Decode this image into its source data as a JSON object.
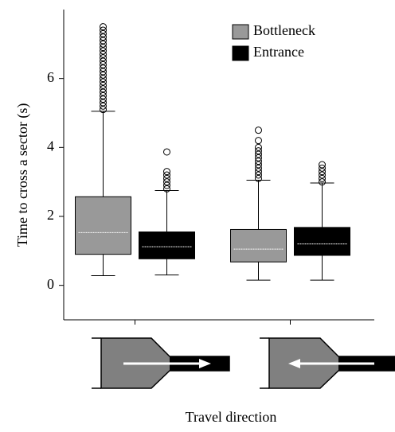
{
  "chart_data": {
    "type": "box",
    "xlabel": "Travel direction",
    "ylabel": "Time to cross a sector (s)",
    "categories": [
      null,
      null
    ],
    "ylim": [
      -1,
      8
    ],
    "yticks": [
      0,
      2,
      4,
      6
    ],
    "legend": "top-right",
    "series": [
      {
        "name": "Bottleneck",
        "color": "#999999",
        "median_color": "#ffffff",
        "boxes": [
          {
            "low": 0.28,
            "q1": 0.9,
            "median": 1.53,
            "q3": 2.57,
            "high": 5.05,
            "outliers": [
              5.1,
              5.2,
              5.3,
              5.4,
              5.5,
              5.6,
              5.7,
              5.8,
              5.9,
              6.0,
              6.1,
              6.2,
              6.3,
              6.4,
              6.5,
              6.6,
              6.7,
              6.8,
              6.9,
              7.0,
              7.1,
              7.2,
              7.3,
              7.4,
              7.5
            ]
          },
          {
            "low": 0.15,
            "q1": 0.68,
            "median": 1.05,
            "q3": 1.62,
            "high": 3.05,
            "outliers": [
              3.1,
              3.2,
              3.3,
              3.4,
              3.5,
              3.6,
              3.7,
              3.8,
              3.9,
              4.0,
              4.2,
              4.5
            ]
          }
        ]
      },
      {
        "name": "Entrance",
        "color": "#000000",
        "median_color": "#ffffff",
        "boxes": [
          {
            "low": 0.3,
            "q1": 0.77,
            "median": 1.12,
            "q3": 1.55,
            "high": 2.75,
            "outliers": [
              2.8,
              2.9,
              3.0,
              3.1,
              3.2,
              3.3,
              3.87
            ]
          },
          {
            "low": 0.15,
            "q1": 0.87,
            "median": 1.2,
            "q3": 1.68,
            "high": 2.97,
            "outliers": [
              3.0,
              3.1,
              3.2,
              3.3,
              3.4,
              3.5
            ]
          }
        ]
      }
    ]
  }
}
